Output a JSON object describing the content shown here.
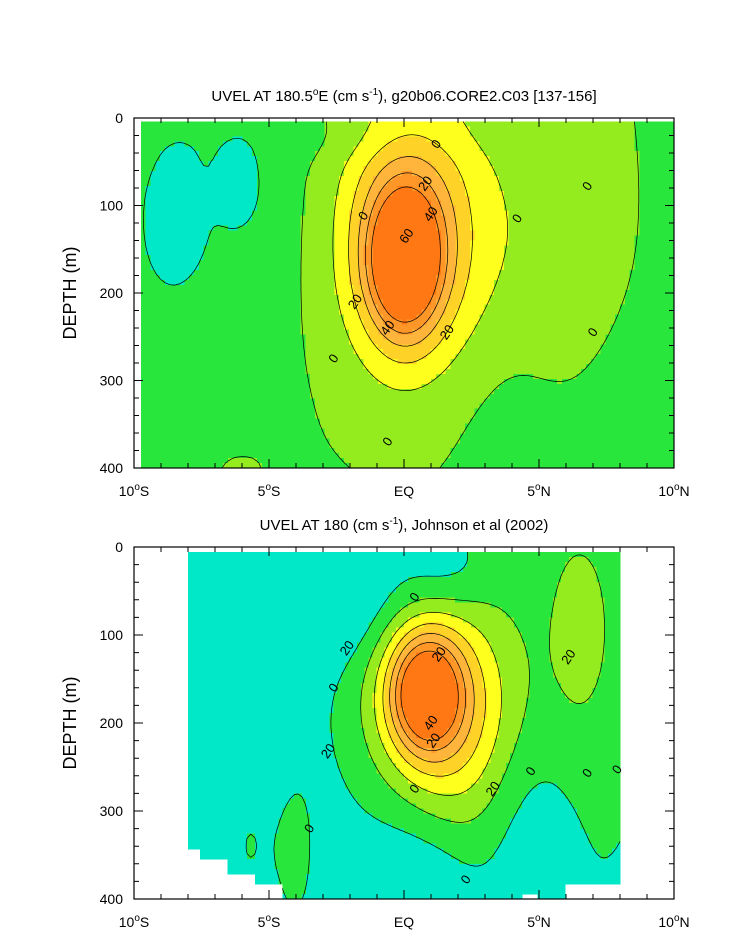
{
  "chart_data": [
    {
      "type": "heatmap",
      "title_parts": [
        "UVEL AT 180.5",
        "o",
        "E (cm s",
        "-1",
        "), g20b06.CORE2.C03 [137-156]"
      ],
      "ylabel": "DEPTH (m)",
      "xlim": [
        -10,
        10
      ],
      "ylim": [
        0,
        400
      ],
      "x_ticks": [
        {
          "value": -10,
          "num": "10",
          "deg": "o",
          "hem": "S"
        },
        {
          "value": -5,
          "num": "5",
          "deg": "o",
          "hem": "S"
        },
        {
          "value": 0,
          "num": "EQ",
          "deg": "",
          "hem": ""
        },
        {
          "value": 5,
          "num": "5",
          "deg": "o",
          "hem": "N"
        },
        {
          "value": 10,
          "num": "10",
          "deg": "o",
          "hem": "N"
        }
      ],
      "y_ticks": [
        "0",
        "100",
        "200",
        "300",
        "400"
      ],
      "contour_levels": [
        -20,
        0,
        10,
        20,
        30,
        40,
        50,
        60
      ],
      "contour_labels": [
        {
          "text": "0",
          "lon": 1.2,
          "depth": 30
        },
        {
          "text": "20",
          "lon": 0.8,
          "depth": 75
        },
        {
          "text": "40",
          "lon": 1.0,
          "depth": 110
        },
        {
          "text": "0",
          "lon": -1.5,
          "depth": 112
        },
        {
          "text": "0",
          "lon": 4.2,
          "depth": 115
        },
        {
          "text": "0",
          "lon": 6.8,
          "depth": 78
        },
        {
          "text": "60",
          "lon": 0.1,
          "depth": 135
        },
        {
          "text": "20",
          "lon": -1.8,
          "depth": 210
        },
        {
          "text": "40",
          "lon": -0.6,
          "depth": 240
        },
        {
          "text": "20",
          "lon": 1.6,
          "depth": 245
        },
        {
          "text": "0",
          "lon": 7.0,
          "depth": 245
        },
        {
          "text": "0",
          "lon": -2.6,
          "depth": 275
        },
        {
          "text": "0",
          "lon": -0.6,
          "depth": 370
        }
      ]
    },
    {
      "type": "heatmap",
      "title_parts": [
        "UVEL AT 180 (cm s",
        "-1",
        "), Johnson et al (2002)"
      ],
      "ylabel": "DEPTH (m)",
      "xlim": [
        -10,
        10
      ],
      "ylim": [
        0,
        400
      ],
      "data_lon_range": [
        -8,
        8
      ],
      "x_ticks": [
        {
          "value": -10,
          "num": "10",
          "deg": "o",
          "hem": "S"
        },
        {
          "value": -5,
          "num": "5",
          "deg": "o",
          "hem": "S"
        },
        {
          "value": 0,
          "num": "EQ",
          "deg": "",
          "hem": ""
        },
        {
          "value": 5,
          "num": "5",
          "deg": "o",
          "hem": "N"
        },
        {
          "value": 10,
          "num": "10",
          "deg": "o",
          "hem": "N"
        }
      ],
      "y_ticks": [
        "0",
        "100",
        "200",
        "300",
        "400"
      ],
      "contour_levels": [
        -20,
        0,
        10,
        20,
        30,
        40,
        50,
        60
      ],
      "contour_labels": [
        {
          "text": "0",
          "lon": 0.4,
          "depth": 57
        },
        {
          "text": "20",
          "lon": -2.1,
          "depth": 115
        },
        {
          "text": "20",
          "lon": 1.3,
          "depth": 122
        },
        {
          "text": "20",
          "lon": 6.1,
          "depth": 125
        },
        {
          "text": "0",
          "lon": -2.6,
          "depth": 160
        },
        {
          "text": "40",
          "lon": 1.0,
          "depth": 200
        },
        {
          "text": "20",
          "lon": 1.1,
          "depth": 220
        },
        {
          "text": "20",
          "lon": -2.8,
          "depth": 232
        },
        {
          "text": "0",
          "lon": 4.7,
          "depth": 255
        },
        {
          "text": "0",
          "lon": 6.8,
          "depth": 257
        },
        {
          "text": "0",
          "lon": 7.9,
          "depth": 253
        },
        {
          "text": "0",
          "lon": 0.4,
          "depth": 275
        },
        {
          "text": "20",
          "lon": 3.3,
          "depth": 275
        },
        {
          "text": "0",
          "lon": -3.5,
          "depth": 320
        },
        {
          "text": "0",
          "lon": 2.3,
          "depth": 378
        }
      ]
    }
  ],
  "colors": {
    "fill_neg20": "#3fe6ff",
    "fill_neg0": "#00e8c8",
    "fill_0": "#28e63c",
    "fill_10": "#94ec1e",
    "fill_20": "#ffff1e",
    "fill_30": "#ffd228",
    "fill_40": "#ffb43c",
    "fill_50": "#ff9628",
    "fill_60": "#ff7814",
    "contour_line": "#000000",
    "background": "#ffffff"
  }
}
